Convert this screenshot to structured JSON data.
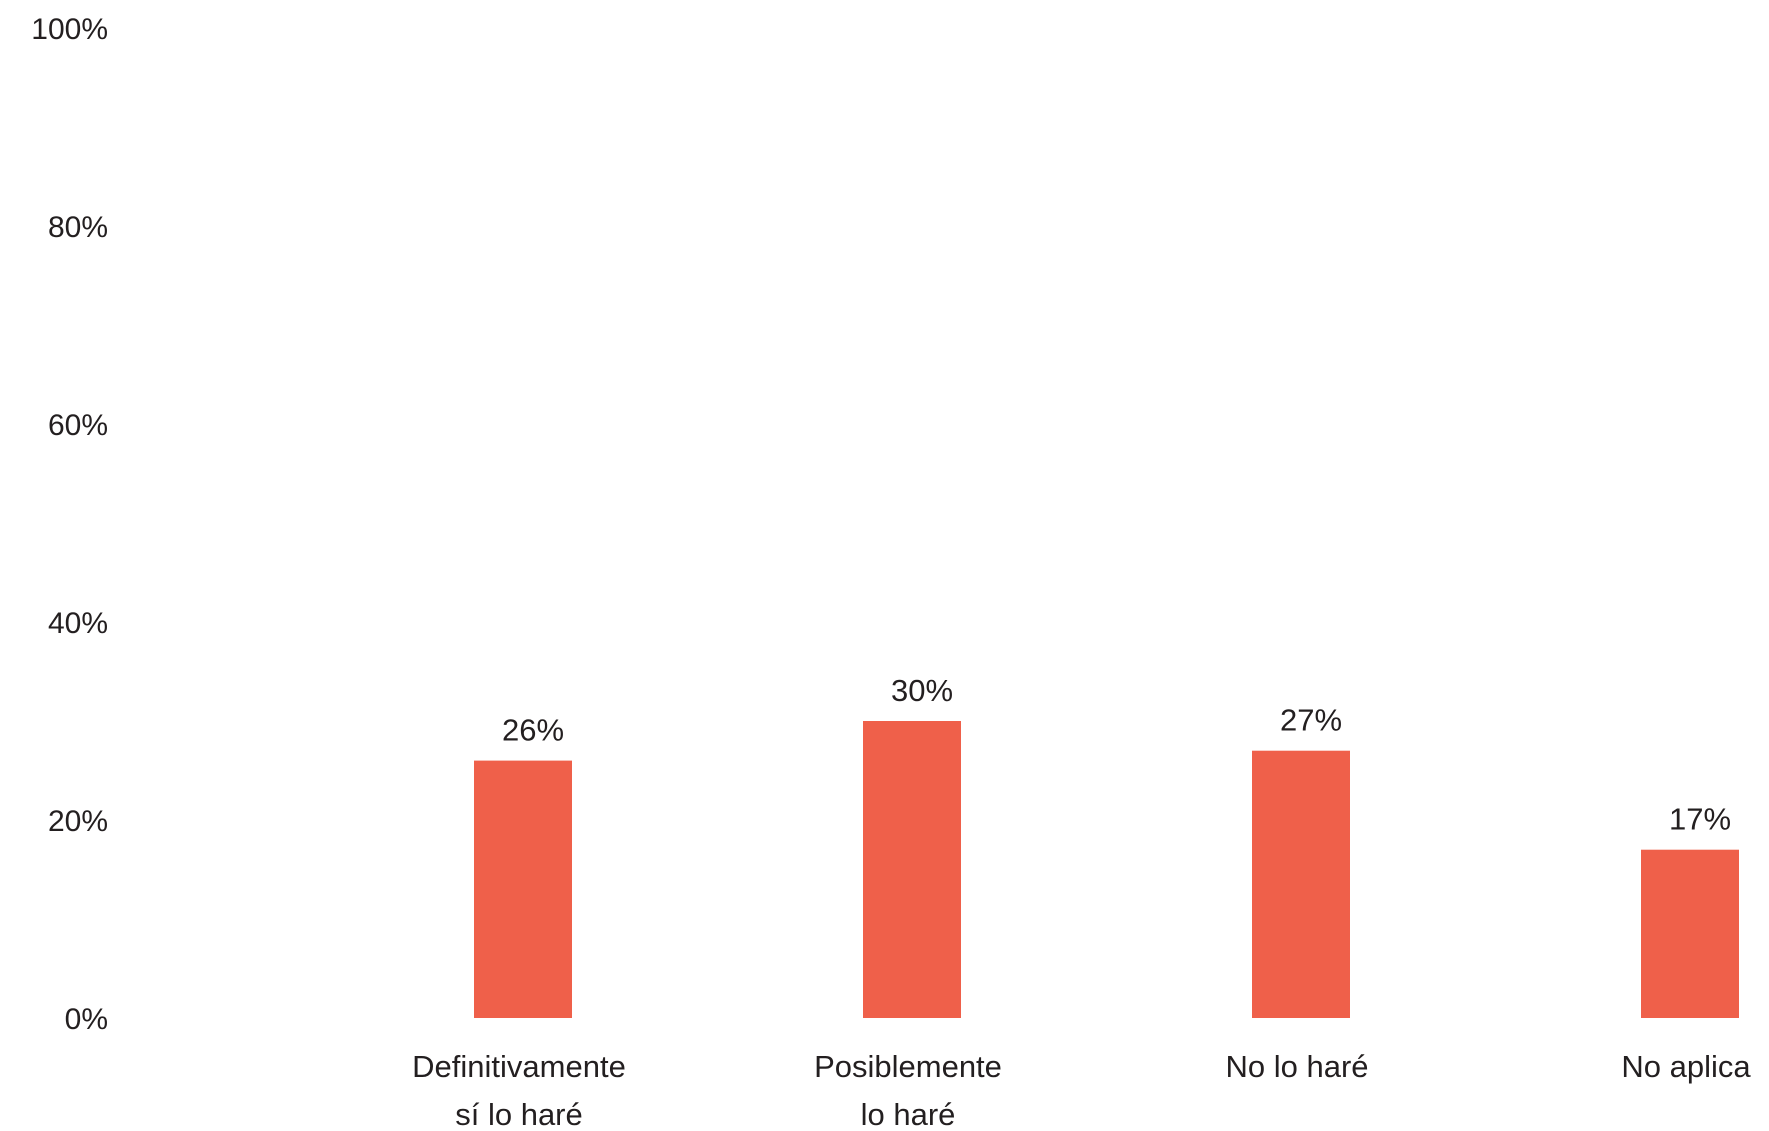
{
  "chart_data": {
    "type": "bar",
    "title": "",
    "xlabel": "",
    "ylabel": "",
    "ylim": [
      0,
      100
    ],
    "yticks": [
      "0%",
      "20%",
      "40%",
      "60%",
      "80%",
      "100%"
    ],
    "categories": [
      [
        "Definitivamente",
        "sí lo haré"
      ],
      [
        "Posiblemente",
        "lo haré"
      ],
      [
        "No lo haré"
      ],
      [
        "No aplica"
      ]
    ],
    "values": [
      26,
      30,
      27,
      17
    ],
    "data_labels": [
      "26%",
      "30%",
      "27%",
      "17%"
    ],
    "bar_color": "#ef604a",
    "grid": false,
    "legend": "none"
  }
}
